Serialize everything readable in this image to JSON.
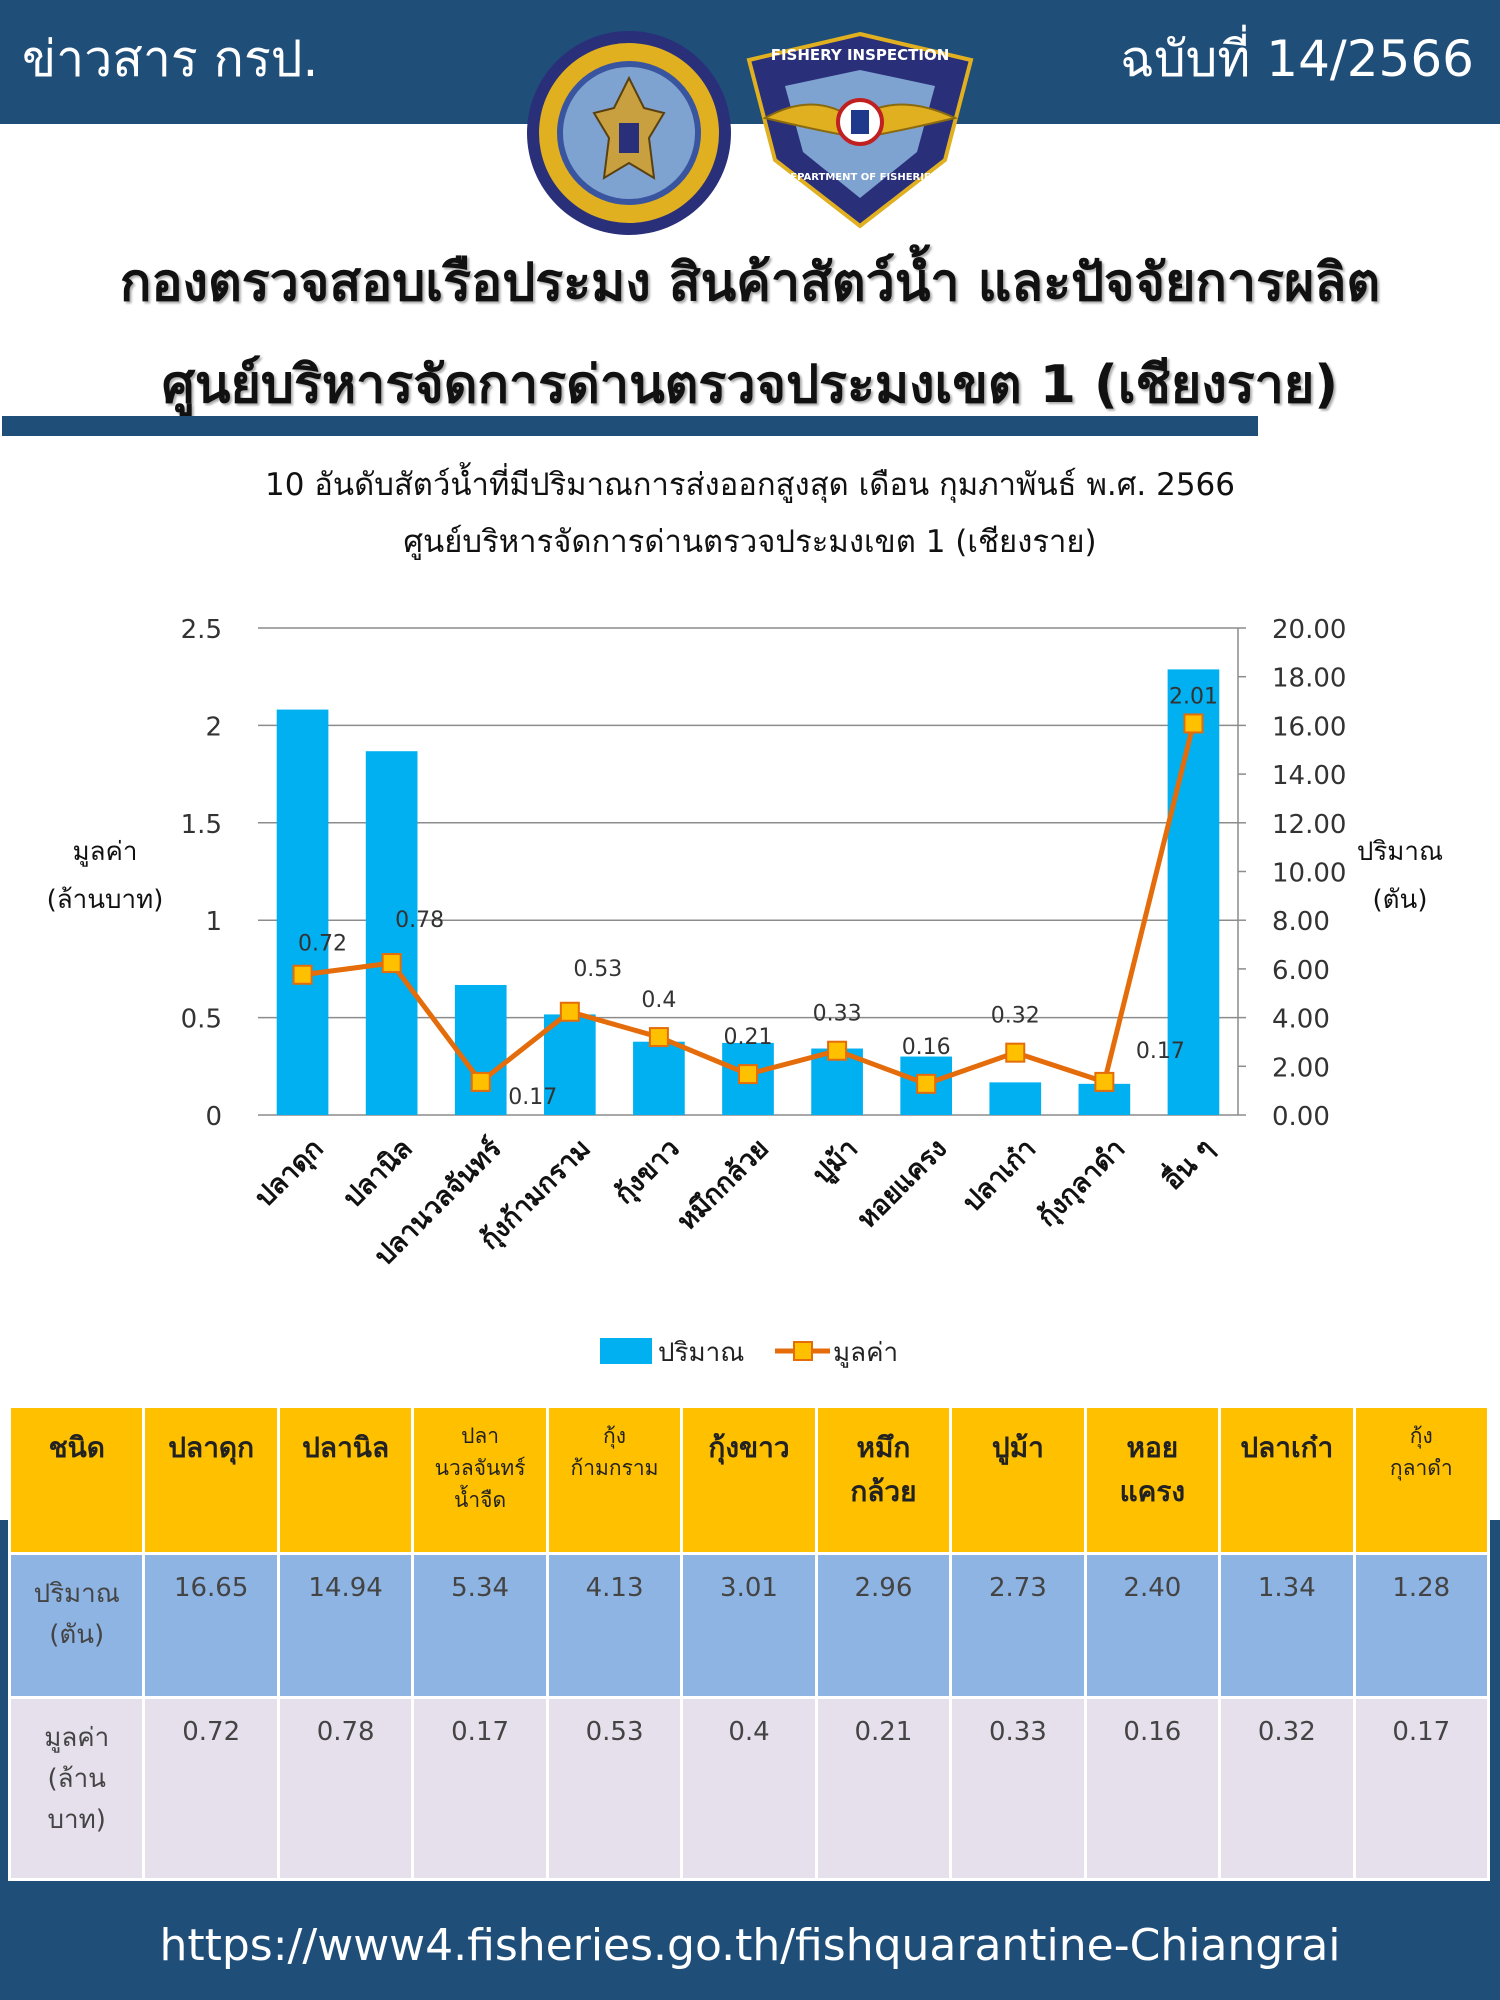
{
  "header": {
    "left_text": "ข่าวสาร กรป.",
    "right_text": "ฉบับที่ 14/2566",
    "logo2_text_top": "FISHERY INSPECTION",
    "logo2_text_bottom": "DEPARTMENT OF FISHERIES",
    "title_line1": "กองตรวจสอบเรือประมง สินค้าสัตว์น้ำ และปัจจัยการผลิต",
    "title_line2": "ศูนย์บริหารจัดการด่านตรวจประมงเขต 1 (เชียงราย)"
  },
  "colors": {
    "navy": "#1f4e79",
    "bar": "#00b0f0",
    "line": "#e46c0a",
    "marker": "#ffc000"
  },
  "chart_data": {
    "type": "bar+line",
    "title_line1": "10 อันดับสัตว์น้ำที่มีปริมาณการส่งออกสูงสุด เดือน กุมภาพันธ์ พ.ศ. 2566",
    "title_line2": "ศูนย์บริหารจัดการด่านตรวจประมงเขต 1 (เชียงราย)",
    "categories": [
      "ปลาดุก",
      "ปลานิล",
      "ปลานวลจันทร์",
      "กุ้งก้ามกราม",
      "กุ้งขาว",
      "หมึกกล้วย",
      "ปูม้า",
      "หอยแครง",
      "ปลาเก๋า",
      "กุ้งกุลาดำ",
      "อื่น ๆ"
    ],
    "left_axis_label_1": "มูลค่า",
    "left_axis_label_2": "(ล้านบาท)",
    "right_axis_label_1": "ปริมาณ",
    "right_axis_label_2": "(ตัน)",
    "left_ylim": [
      0,
      2.5
    ],
    "left_ticks": [
      "0",
      "0.5",
      "1",
      "1.5",
      "2",
      "2.5"
    ],
    "right_ylim": [
      0,
      20
    ],
    "right_ticks": [
      "0.00",
      "2.00",
      "4.00",
      "6.00",
      "8.00",
      "10.00",
      "12.00",
      "14.00",
      "16.00",
      "18.00",
      "20.00"
    ],
    "series": [
      {
        "name": "ปริมาณ",
        "axis": "right",
        "type": "bar",
        "values": [
          16.65,
          14.94,
          5.34,
          4.13,
          3.01,
          2.96,
          2.73,
          2.4,
          1.34,
          1.28,
          18.3
        ]
      },
      {
        "name": "มูลค่า",
        "axis": "left",
        "type": "line",
        "values": [
          0.72,
          0.78,
          0.17,
          0.53,
          0.4,
          0.21,
          0.33,
          0.16,
          0.32,
          0.17,
          2.01
        ],
        "labels": [
          "0.72",
          "0.78",
          "0.17",
          "0.53",
          "0.4",
          "0.21",
          "0.33",
          "0.16",
          "0.32",
          "0.17",
          "2.01"
        ]
      }
    ],
    "grid": true,
    "legend_placement": "bottom"
  },
  "table": {
    "headers": [
      "ชนิด",
      "ปลาดุก",
      "ปลานิล",
      "ปลา\nนวลจันทร์\nน้ำจืด",
      "กุ้ง\nก้ามกราม",
      "กุ้งขาว",
      "หมึก\nกล้วย",
      "ปูม้า",
      "หอย\nแครง",
      "ปลาเก๋า",
      "กุ้ง\nกุลาดำ"
    ],
    "qty_label": "ปริมาณ\n(ตัน)",
    "qty_values": [
      "16.65",
      "14.94",
      "5.34",
      "4.13",
      "3.01",
      "2.96",
      "2.73",
      "2.40",
      "1.34",
      "1.28"
    ],
    "val_label": "มูลค่า\n(ล้าน\nบาท)",
    "val_values": [
      "0.72",
      "0.78",
      "0.17",
      "0.53",
      "0.4",
      "0.21",
      "0.33",
      "0.16",
      "0.32",
      "0.17"
    ]
  },
  "footer": {
    "url": "https://www4.fisheries.go.th/fishquarantine-Chiangrai"
  }
}
